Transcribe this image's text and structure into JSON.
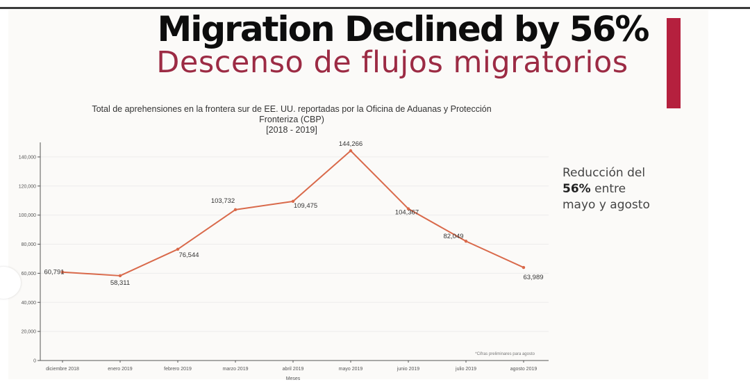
{
  "banner_text": "Migration Declined by 56%",
  "slide_title": "Descenso de flujos migratorios",
  "chart_data": {
    "type": "line",
    "title_line1": "Total de aprehensiones en la frontera sur de EE. UU. reportadas por la Oficina de Aduanas y Protección",
    "title_line2": "Fronteriza (CBP)",
    "title_line3": "[2018 - 2019]",
    "xlabel": "Meses",
    "ylabel": "",
    "categories": [
      "diciembre 2018",
      "enero 2019",
      "febrero 2019",
      "marzo 2019",
      "abril 2019",
      "mayo 2019",
      "junio 2019",
      "julio 2019",
      "agosto 2019"
    ],
    "values": [
      60791,
      58311,
      76544,
      103732,
      109475,
      144266,
      104367,
      82049,
      63989
    ],
    "value_labels": [
      "60,791",
      "58,311",
      "76,544",
      "103,732",
      "109,475",
      "144,266",
      "104,367",
      "82,049",
      "63,989"
    ],
    "yticks": [
      0,
      20000,
      40000,
      60000,
      80000,
      100000,
      120000,
      140000
    ],
    "ytick_labels": [
      "0",
      "20,000",
      "40,000",
      "60,000",
      "80,000",
      "100,000",
      "120,000",
      "140,000"
    ],
    "ylim": [
      0,
      150000
    ],
    "grid": true,
    "line_color": "#d9694a",
    "footnote": "*Cifras preliminares para agosto"
  },
  "note": {
    "line1": "Reducción del",
    "highlight": "56%",
    "line2_rest": " entre",
    "line3": "mayo y agosto"
  },
  "colors": {
    "subtitle": "#9c2b44",
    "accent_bar": "#b5203e"
  }
}
